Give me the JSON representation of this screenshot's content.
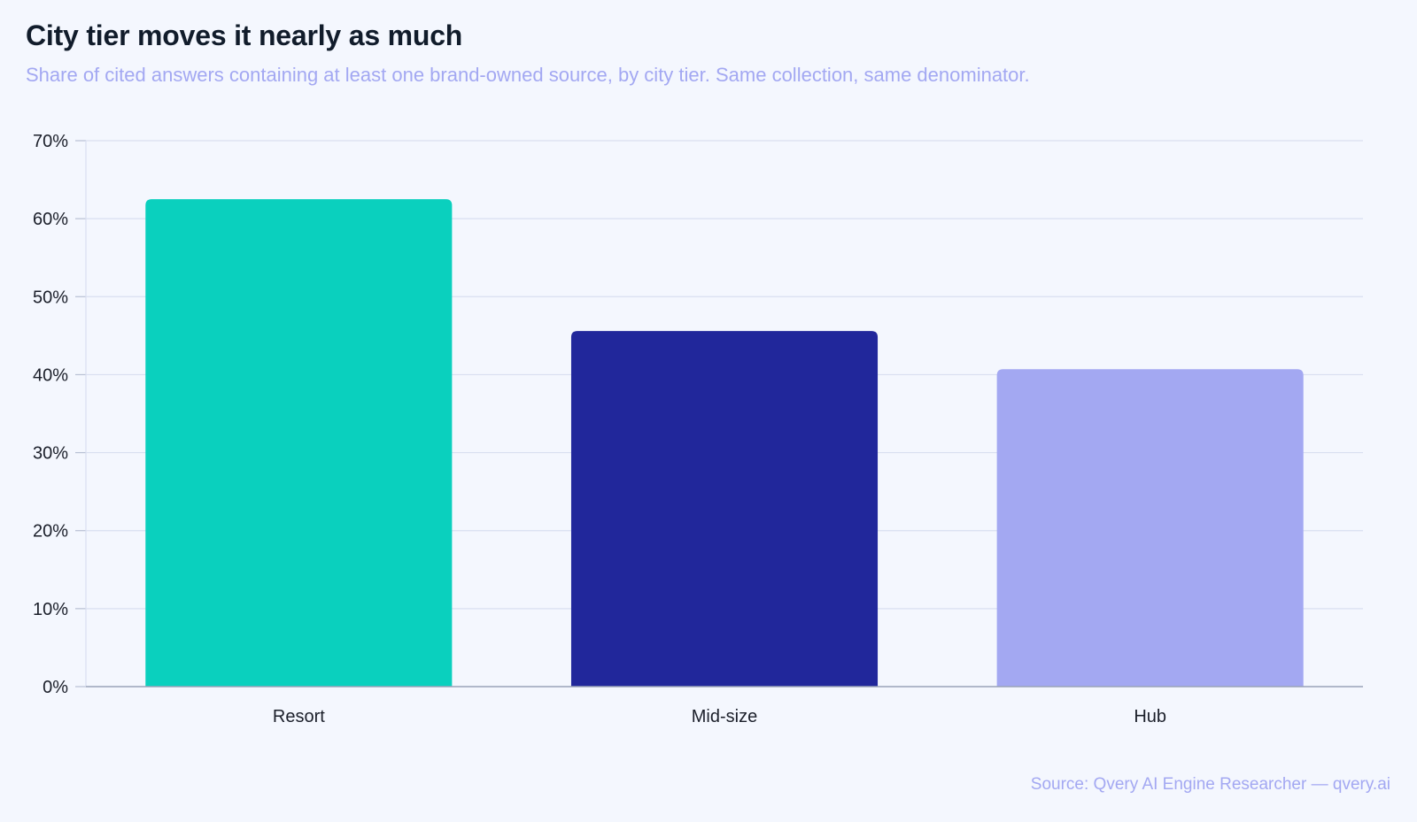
{
  "header": {
    "title": "City tier moves it nearly as much",
    "subtitle": "Share of cited answers containing at least one brand-owned source, by city tier. Same collection, same denominator."
  },
  "footer": {
    "source": "Source: Qvery AI Engine Researcher — qvery.ai"
  },
  "chart_data": {
    "type": "bar",
    "categories": [
      "Resort",
      "Mid-size",
      "Hub"
    ],
    "values": [
      62.5,
      45.6,
      40.7
    ],
    "colors": [
      "#0ad0be",
      "#21279b",
      "#a3a8f2"
    ],
    "ylim": [
      0,
      70
    ],
    "yticks": [
      0,
      10,
      20,
      30,
      40,
      50,
      60,
      70
    ],
    "ytick_labels": [
      "0%",
      "10%",
      "20%",
      "30%",
      "40%",
      "50%",
      "60%",
      "70%"
    ],
    "grid": true,
    "legend": "none"
  }
}
